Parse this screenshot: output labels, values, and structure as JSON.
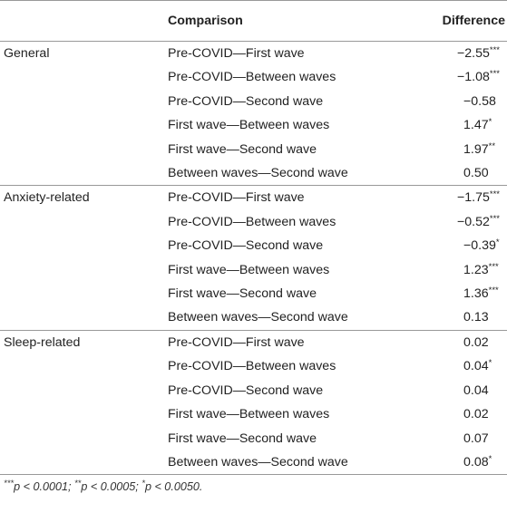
{
  "table": {
    "headers": {
      "group": "",
      "comparison": "Comparison",
      "difference": "Difference"
    },
    "groups": [
      {
        "name": "General",
        "rows": [
          {
            "comparison": "Pre-COVID—First wave",
            "value": "−2.55",
            "sig": "***"
          },
          {
            "comparison": "Pre-COVID—Between waves",
            "value": "−1.08",
            "sig": "***"
          },
          {
            "comparison": "Pre-COVID—Second wave",
            "value": "−0.58",
            "sig": ""
          },
          {
            "comparison": "First wave—Between waves",
            "value": "1.47",
            "sig": "*"
          },
          {
            "comparison": "First wave—Second wave",
            "value": "1.97",
            "sig": "**"
          },
          {
            "comparison": "Between waves—Second wave",
            "value": "0.50",
            "sig": ""
          }
        ]
      },
      {
        "name": "Anxiety-related",
        "rows": [
          {
            "comparison": "Pre-COVID—First wave",
            "value": "−1.75",
            "sig": "***"
          },
          {
            "comparison": "Pre-COVID—Between waves",
            "value": "−0.52",
            "sig": "***"
          },
          {
            "comparison": "Pre-COVID—Second wave",
            "value": "−0.39",
            "sig": "*"
          },
          {
            "comparison": "First wave—Between waves",
            "value": "1.23",
            "sig": "***"
          },
          {
            "comparison": "First wave—Second wave",
            "value": "1.36",
            "sig": "***"
          },
          {
            "comparison": "Between waves—Second wave",
            "value": "0.13",
            "sig": ""
          }
        ]
      },
      {
        "name": "Sleep-related",
        "rows": [
          {
            "comparison": "Pre-COVID—First wave",
            "value": "0.02",
            "sig": ""
          },
          {
            "comparison": "Pre-COVID—Between waves",
            "value": "0.04",
            "sig": "*"
          },
          {
            "comparison": "Pre-COVID—Second wave",
            "value": "0.04",
            "sig": ""
          },
          {
            "comparison": "First wave—Between waves",
            "value": "0.02",
            "sig": ""
          },
          {
            "comparison": "First wave—Second wave",
            "value": "0.07",
            "sig": ""
          },
          {
            "comparison": "Between waves—Second wave",
            "value": "0.08",
            "sig": "*"
          }
        ]
      }
    ]
  },
  "footnote": {
    "parts": [
      {
        "sup": "***",
        "text": "p < 0.0001; "
      },
      {
        "sup": "**",
        "text": "p < 0.0005; "
      },
      {
        "sup": "*",
        "text": "p < 0.0050."
      }
    ]
  }
}
